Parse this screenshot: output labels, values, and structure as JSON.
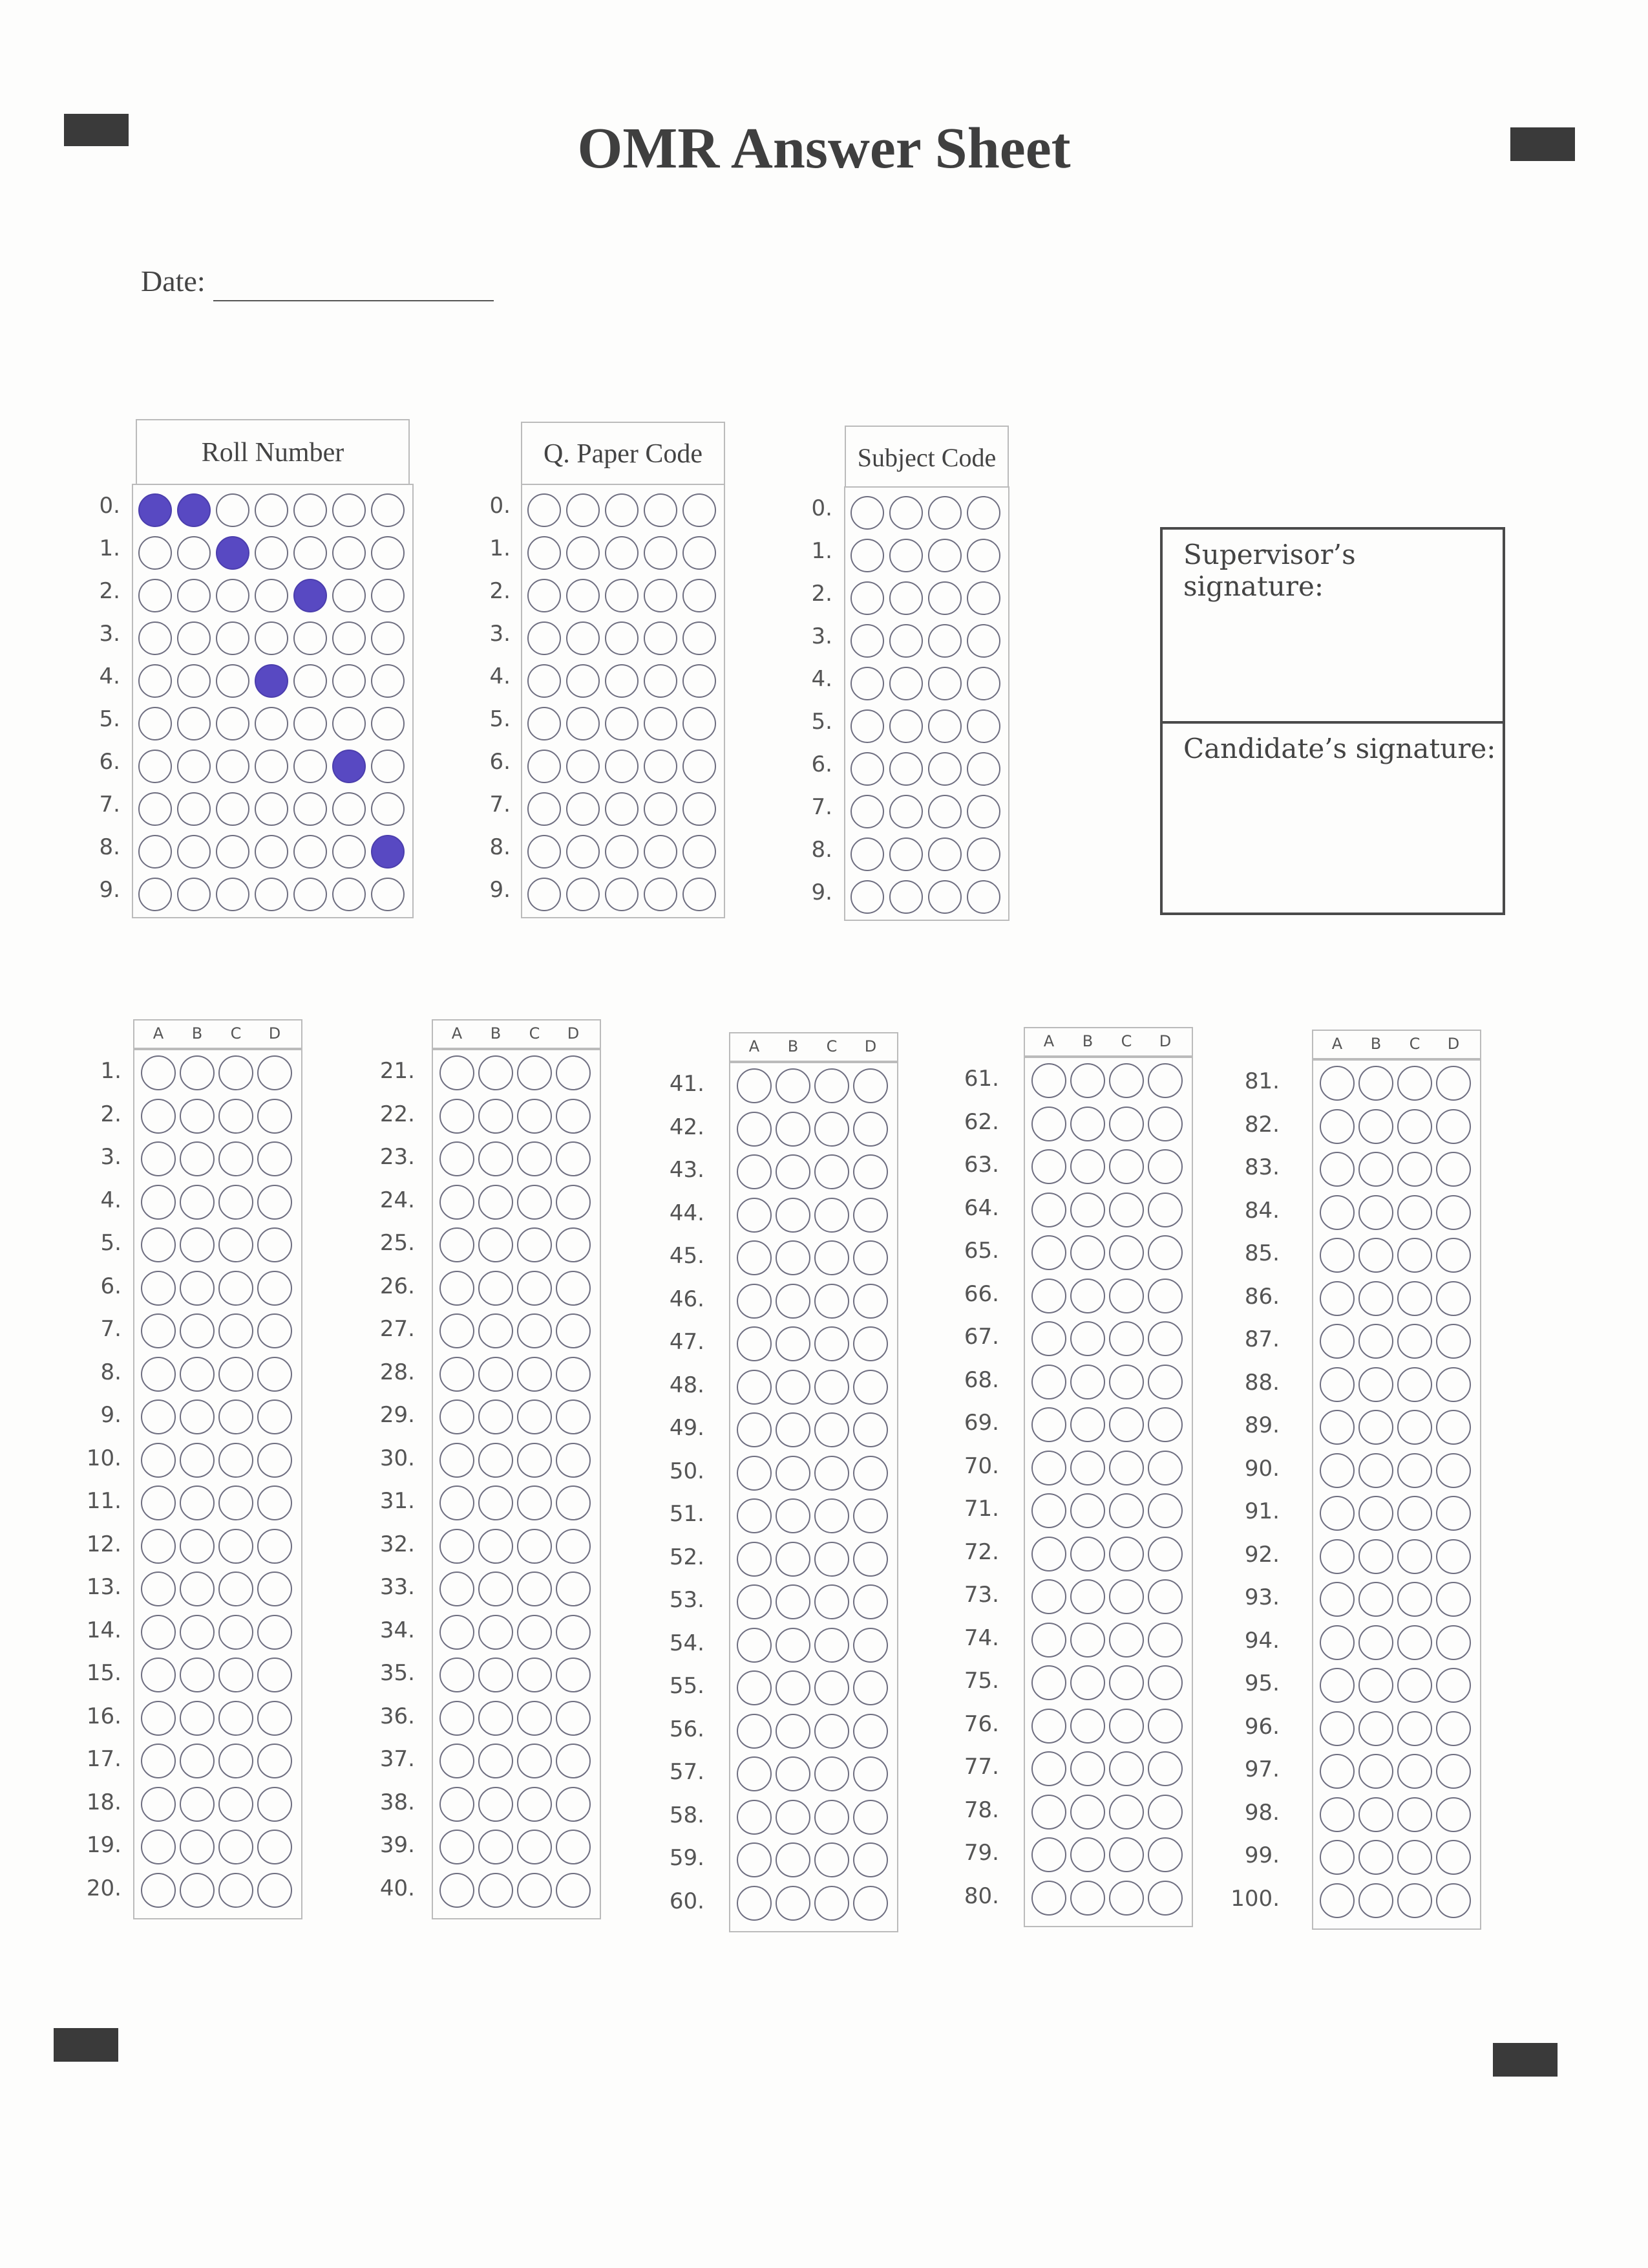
{
  "title": "OMR Answer Sheet",
  "date": {
    "label": "Date:",
    "value": ""
  },
  "id_grids": [
    {
      "key": "roll",
      "header": "Roll Number",
      "row_labels": [
        "0.",
        "1.",
        "2.",
        "3.",
        "4.",
        "5.",
        "6.",
        "7.",
        "8.",
        "9."
      ],
      "filled": [
        [
          0,
          1
        ],
        [
          2
        ],
        [
          4
        ],
        [],
        [
          3
        ],
        [],
        [
          5
        ],
        [],
        [
          6
        ],
        []
      ]
    },
    {
      "key": "paper",
      "header": "Q. Paper Code",
      "row_labels": [
        "0.",
        "1.",
        "2.",
        "3.",
        "4.",
        "5.",
        "6.",
        "7.",
        "8.",
        "9."
      ],
      "filled": [
        [],
        [],
        [],
        [],
        [],
        [],
        [],
        [],
        [],
        []
      ]
    },
    {
      "key": "subject",
      "header": "Subject Code",
      "row_labels": [
        "0.",
        "1.",
        "2.",
        "3.",
        "4.",
        "5.",
        "6.",
        "7.",
        "8.",
        "9."
      ],
      "filled": [
        [],
        [],
        [],
        [],
        [],
        [],
        [],
        [],
        [],
        []
      ]
    }
  ],
  "signatures": {
    "supervisor": "Supervisor’s signature:",
    "candidate": "Candidate’s signature:"
  },
  "answer_options": [
    "A",
    "B",
    "C",
    "D"
  ],
  "answer_blocks": [
    {
      "from": 1,
      "to": 20
    },
    {
      "from": 21,
      "to": 40
    },
    {
      "from": 41,
      "to": 60
    },
    {
      "from": 61,
      "to": 80
    },
    {
      "from": 81,
      "to": 100
    }
  ],
  "answers_marked": []
}
